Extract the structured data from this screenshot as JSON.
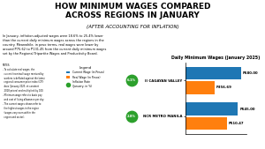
{
  "chart_data": {
    "type": "bar",
    "orientation": "horizontal",
    "title": "HOW MINIMUM WAGES COMPARED\nACROSS REGIONS IN JANUARY",
    "subtitle": "(AFTER ACCOUNTING FOR INFLATION)",
    "chart_title": "Daily Minimum Wages (January 2025)",
    "body_text": "In January, inflation-adjusted wages were 18.6% to 25.4% lower\nthan the current daily minimum wages across the regions in the\ncountry. Meanwhile, in peso terms, real wages were lower by\naround ₱75.62 to ₱131.45 from the current daily minimum wages\nset by the Regional Tripartite Wages and Productivity Board.",
    "notes_text": "NOTES:\n- To calculate real wages, the\n  current (nominal) wage received by\n  workers is deflated against the latest\n  regional consumer price index (CPI)\n  data (January 2025, at constant\n  2018 prices) and multiplied by 100.\n- Minimum wage refers to basic pay\n  and cost of living allowance per day.\n- The current wages shown refer to\n  the highest wages in the region\n  (wages vary even within the\n  region and sector).",
    "categories": [
      "II CAGAYAN VALLEY",
      "NCR METRO MANILA"
    ],
    "series": [
      {
        "name": "Current Wage (in Pesos)",
        "values": [
          680.0,
          645.0
        ],
        "value_labels": [
          "₱680.00",
          "₱645.00"
        ]
      },
      {
        "name": "Real Wage (in Pesos)",
        "values": [
          356.69,
          510.47
        ],
        "value_labels": [
          "₱356.69",
          "₱510.47"
        ]
      },
      {
        "name": "Inflation Rate\n(January, in %)",
        "type": "scatter",
        "marker": "circle",
        "values": [
          6.1,
          2.8
        ],
        "value_labels": [
          "6.1%",
          "2.8%"
        ]
      }
    ],
    "xlim": [
      0,
      750
    ],
    "data_labels": true,
    "tick_labels": "y",
    "legend": "upper left",
    "legend_title": "Legend"
  }
}
